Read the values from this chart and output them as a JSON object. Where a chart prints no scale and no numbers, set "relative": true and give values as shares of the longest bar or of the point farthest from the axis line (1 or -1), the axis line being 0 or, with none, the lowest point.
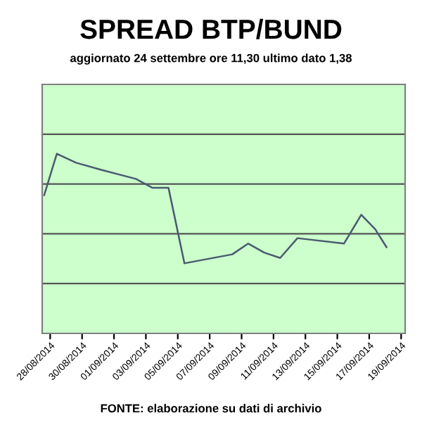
{
  "chart_data": {
    "type": "line",
    "title": "SPREAD BTP/BUND",
    "subtitle": "aggiornato 24 settembre ore 11,30 ultimo dato 1,38",
    "annotations": [
      "FONTE: elaborazione su dati di archivio"
    ],
    "relative": true,
    "x": [
      "2014-08-27T15:00",
      "2014-08-28T10:00",
      "2014-08-29T15:00",
      "2014-08-31T05:00",
      "2014-09-02T09:00",
      "2014-09-03T10:00",
      "2014-09-04T10:00",
      "2014-09-05T10:00",
      "2014-09-08T10:00",
      "2014-09-09T10:00",
      "2014-09-10T10:00",
      "2014-09-11T10:00",
      "2014-09-12T12:00",
      "2014-09-15T10:00",
      "2014-09-16T12:00",
      "2014-09-17T09:00",
      "2014-09-18T02:00"
    ],
    "series": [
      {
        "color": "#4a5a70",
        "values": [
          0.77,
          1,
          0.95,
          0.91,
          0.86,
          0.81,
          0.81,
          0.39,
          0.44,
          0.5,
          0.45,
          0.42,
          0.53,
          0.5,
          0.66,
          0.58,
          0.48
        ]
      }
    ],
    "xlim": [
      "2014-08-27T12:00",
      "2014-09-19T06:00"
    ],
    "xticks": [
      {
        "value": "2014-08-28",
        "label": "28/08/2014"
      },
      {
        "value": "2014-08-30",
        "label": "30/08/2014"
      },
      {
        "value": "2014-09-01",
        "label": "01/09/2014"
      },
      {
        "value": "2014-09-03",
        "label": "03/09/2014"
      },
      {
        "value": "2014-09-05",
        "label": "05/09/2014"
      },
      {
        "value": "2014-09-07",
        "label": "07/09/2014"
      },
      {
        "value": "2014-09-09",
        "label": "09/09/2014"
      },
      {
        "value": "2014-09-11",
        "label": "11/09/2014"
      },
      {
        "value": "2014-09-13",
        "label": "13/09/2014"
      },
      {
        "value": "2014-09-15",
        "label": "15/09/2014"
      },
      {
        "value": "2014-09-17",
        "label": "17/09/2014"
      },
      {
        "value": "2014-09-19",
        "label": "19/09/2014"
      }
    ],
    "grid": "y",
    "line_style": "solid",
    "marker": "none"
  }
}
